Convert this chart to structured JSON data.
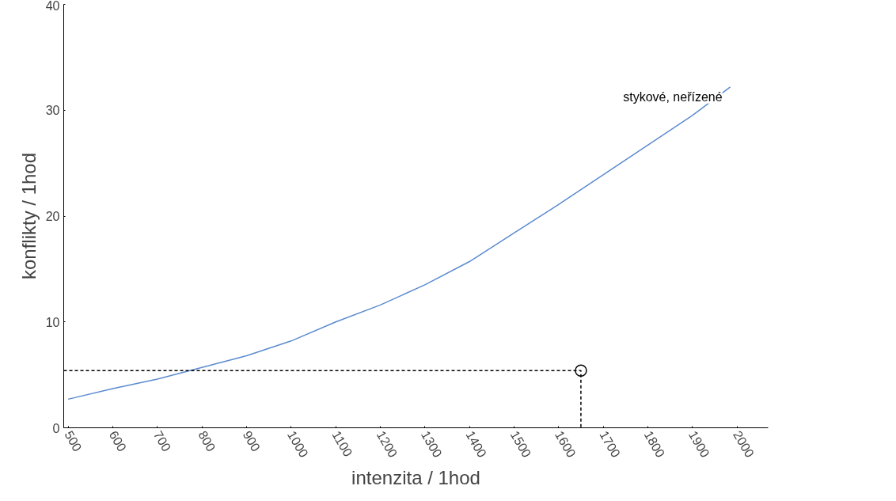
{
  "chart_data": {
    "type": "line",
    "xlabel": "intenzita / 1hod",
    "ylabel": "konflikty / 1hod",
    "xlim": [
      490,
      2070
    ],
    "xticks": [
      500,
      600,
      700,
      800,
      900,
      1000,
      1100,
      1200,
      1300,
      1400,
      1500,
      1600,
      1700,
      1800,
      1900,
      2000
    ],
    "ylim": [
      0,
      40
    ],
    "yticks": [
      0,
      10,
      20,
      30,
      40
    ],
    "grid": false,
    "legend": false,
    "series": [
      {
        "name": "stykové, neřízené",
        "color": "#5b8bd0",
        "line_style": "solid",
        "marker": "none",
        "x": [
          500,
          600,
          700,
          800,
          900,
          1000,
          1100,
          1200,
          1300,
          1400,
          1500,
          1600,
          1700,
          1800,
          1900,
          1985
        ],
        "values": [
          2.7,
          3.7,
          4.6,
          5.7,
          6.8,
          8.2,
          10.0,
          11.6,
          13.5,
          15.7,
          18.4,
          21.1,
          23.9,
          26.7,
          29.5,
          32.2
        ]
      },
      {
        "type": "line",
        "color": "#000000",
        "line_style": "dashed",
        "marker": "none",
        "x": [
          490,
          1650,
          1650
        ],
        "values": [
          5.4,
          5.4,
          0
        ]
      },
      {
        "type": "scatter",
        "color": "#000000",
        "marker": "circle",
        "x": [
          1650
        ],
        "values": [
          5.4
        ]
      }
    ]
  }
}
